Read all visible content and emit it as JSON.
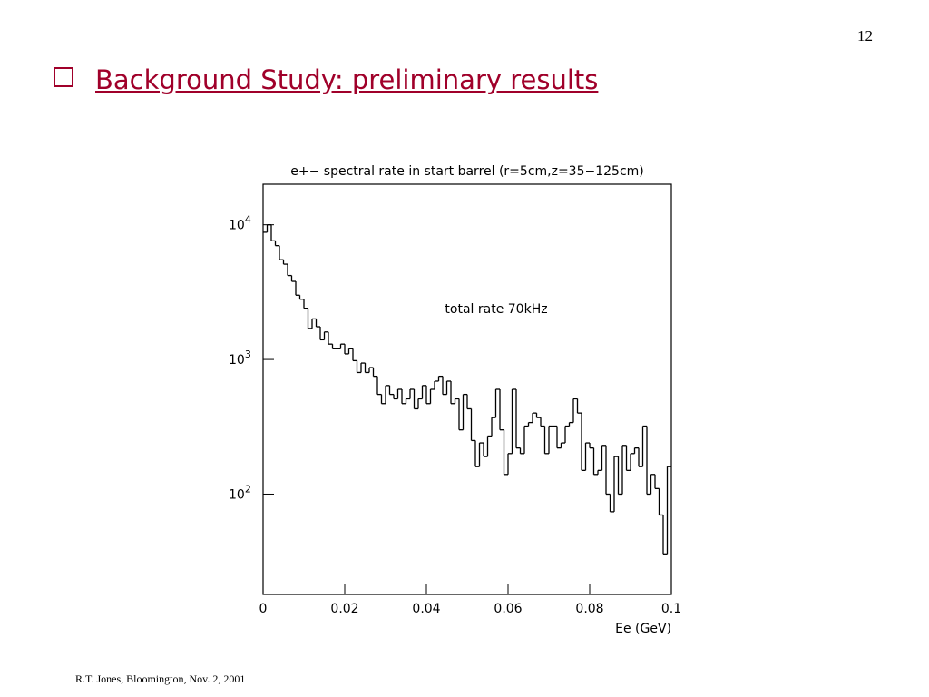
{
  "slide": {
    "number": "12",
    "title": "Background Study: preliminary results",
    "footer": "R.T. Jones, Bloomington, Nov. 2, 2001"
  },
  "chart_data": {
    "type": "histogram",
    "title": "e+− spectral rate in start barrel (r=5cm,z=35−125cm)",
    "annotation": "total rate 70kHz",
    "x_label": "Ee (GeV)",
    "color": "#000000",
    "log_y": true,
    "xlim": [
      0,
      0.1
    ],
    "xticks": [
      0,
      0.02,
      0.04,
      0.06,
      0.08,
      0.1
    ],
    "ylim": [
      18,
      20000
    ],
    "yticks": [
      {
        "value": 100,
        "label": "10^2"
      },
      {
        "value": 1000,
        "label": "10^3"
      },
      {
        "value": 10000,
        "label": "10^4"
      }
    ],
    "bins": [
      0,
      0.001,
      0.002,
      0.003,
      0.004,
      0.005,
      0.006,
      0.007,
      0.008,
      0.009,
      0.01,
      0.011,
      0.012,
      0.013,
      0.014,
      0.015,
      0.016,
      0.017,
      0.018,
      0.019,
      0.02,
      0.021,
      0.022,
      0.023,
      0.024,
      0.025,
      0.026,
      0.027,
      0.028,
      0.029,
      0.03,
      0.031,
      0.032,
      0.033,
      0.034,
      0.035,
      0.036,
      0.037,
      0.038,
      0.039,
      0.04,
      0.041,
      0.042,
      0.043,
      0.044,
      0.045,
      0.046,
      0.047,
      0.048,
      0.049,
      0.05,
      0.051,
      0.052,
      0.053,
      0.054,
      0.055,
      0.056,
      0.057,
      0.058,
      0.059,
      0.06,
      0.061,
      0.062,
      0.063,
      0.064,
      0.065,
      0.066,
      0.067,
      0.068,
      0.069,
      0.07,
      0.071,
      0.072,
      0.073,
      0.074,
      0.075,
      0.076,
      0.077,
      0.078,
      0.079,
      0.08,
      0.081,
      0.082,
      0.083,
      0.084,
      0.085,
      0.086,
      0.087,
      0.088,
      0.089,
      0.09,
      0.091,
      0.092,
      0.093,
      0.094,
      0.095,
      0.096,
      0.097,
      0.098,
      0.099,
      0.1
    ],
    "values": [
      8800,
      10000,
      7600,
      7000,
      5500,
      5100,
      4200,
      3800,
      3000,
      2800,
      2400,
      1700,
      2000,
      1750,
      1400,
      1600,
      1300,
      1200,
      1200,
      1300,
      1100,
      1200,
      980,
      800,
      940,
      800,
      870,
      750,
      550,
      470,
      640,
      550,
      510,
      600,
      470,
      510,
      600,
      430,
      510,
      640,
      470,
      600,
      690,
      750,
      550,
      690,
      470,
      510,
      300,
      550,
      430,
      250,
      160,
      240,
      190,
      270,
      370,
      600,
      300,
      140,
      200,
      600,
      220,
      200,
      320,
      340,
      400,
      370,
      320,
      200,
      320,
      320,
      220,
      240,
      320,
      340,
      510,
      400,
      150,
      240,
      220,
      140,
      150,
      230,
      100,
      74,
      190,
      100,
      230,
      150,
      200,
      220,
      160,
      320,
      100,
      140,
      110,
      70,
      36,
      160
    ]
  }
}
